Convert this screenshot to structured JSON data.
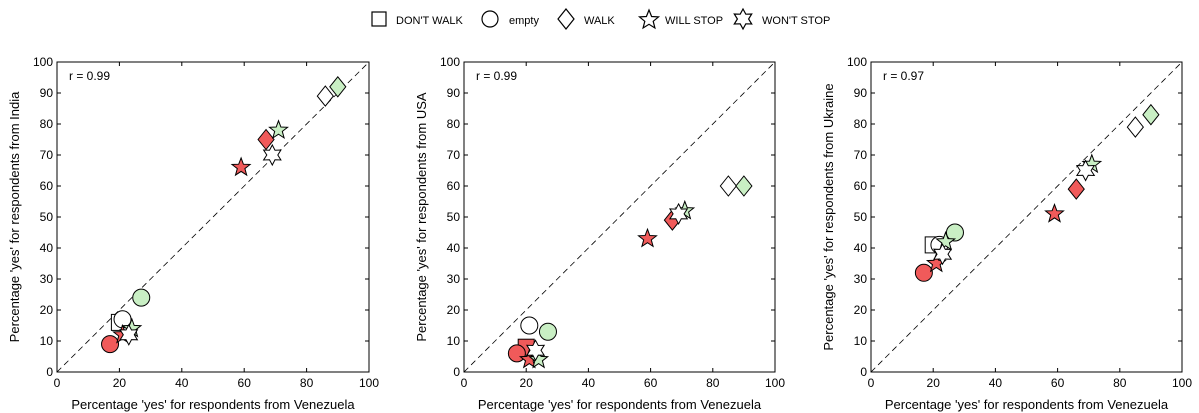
{
  "legend": {
    "items": [
      {
        "key": "dont_walk",
        "label": "DON'T WALK",
        "icon": "square-icon"
      },
      {
        "key": "empty",
        "label": "empty",
        "icon": "circle-icon"
      },
      {
        "key": "walk",
        "label": "WALK",
        "icon": "diamond-icon"
      },
      {
        "key": "will_stop",
        "label": "WILL STOP",
        "icon": "star5-icon"
      },
      {
        "key": "wont_stop",
        "label": "WON'T STOP",
        "icon": "star6-icon"
      }
    ]
  },
  "colors": {
    "white": "#ffffff",
    "green": "#c9efc4",
    "red": "#f05a5a",
    "edge": "#000000",
    "grid": "#000000"
  },
  "chart_data": [
    {
      "type": "scatter",
      "annotation": "r = 0.99",
      "xlabel": "Percentage 'yes' for respondents from Venezuela",
      "ylabel": "Percentage 'yes' for respondents from India",
      "xlim": [
        0,
        100
      ],
      "ylim": [
        0,
        100
      ],
      "xticks": [
        0,
        20,
        40,
        60,
        80,
        100
      ],
      "yticks": [
        0,
        10,
        20,
        30,
        40,
        50,
        60,
        70,
        80,
        90,
        100
      ],
      "diagonal": true,
      "points": [
        {
          "shape": "square",
          "color": "white",
          "x": 20,
          "y": 16
        },
        {
          "shape": "circle",
          "color": "white",
          "x": 21,
          "y": 17
        },
        {
          "shape": "circle",
          "color": "green",
          "x": 27,
          "y": 24
        },
        {
          "shape": "circle",
          "color": "red",
          "x": 17,
          "y": 9
        },
        {
          "shape": "star5",
          "color": "red",
          "x": 21,
          "y": 12
        },
        {
          "shape": "star5",
          "color": "green",
          "x": 24,
          "y": 14
        },
        {
          "shape": "star6",
          "color": "white",
          "x": 23,
          "y": 12
        },
        {
          "shape": "star5",
          "color": "red",
          "x": 59,
          "y": 66
        },
        {
          "shape": "diamond",
          "color": "red",
          "x": 67,
          "y": 75
        },
        {
          "shape": "star5",
          "color": "green",
          "x": 71,
          "y": 78
        },
        {
          "shape": "star6",
          "color": "white",
          "x": 69,
          "y": 70
        },
        {
          "shape": "diamond",
          "color": "white",
          "x": 86,
          "y": 89
        },
        {
          "shape": "diamond",
          "color": "green",
          "x": 90,
          "y": 92
        }
      ]
    },
    {
      "type": "scatter",
      "annotation": "r = 0.99",
      "xlabel": "Percentage 'yes' for respondents from Venezuela",
      "ylabel": "Percentage 'yes' for respondents from USA",
      "xlim": [
        0,
        100
      ],
      "ylim": [
        0,
        100
      ],
      "xticks": [
        0,
        20,
        40,
        60,
        80,
        100
      ],
      "yticks": [
        0,
        10,
        20,
        30,
        40,
        50,
        60,
        70,
        80,
        90,
        100
      ],
      "diagonal": true,
      "points": [
        {
          "shape": "square",
          "color": "red",
          "x": 20,
          "y": 8
        },
        {
          "shape": "circle",
          "color": "red",
          "x": 17,
          "y": 6
        },
        {
          "shape": "circle",
          "color": "white",
          "x": 21,
          "y": 15
        },
        {
          "shape": "circle",
          "color": "green",
          "x": 27,
          "y": 13
        },
        {
          "shape": "star5",
          "color": "red",
          "x": 21,
          "y": 4
        },
        {
          "shape": "star5",
          "color": "green",
          "x": 24,
          "y": 4
        },
        {
          "shape": "star6",
          "color": "white",
          "x": 23,
          "y": 7
        },
        {
          "shape": "star5",
          "color": "red",
          "x": 59,
          "y": 43
        },
        {
          "shape": "diamond",
          "color": "red",
          "x": 67,
          "y": 49
        },
        {
          "shape": "star5",
          "color": "green",
          "x": 71,
          "y": 52
        },
        {
          "shape": "star6",
          "color": "white",
          "x": 69,
          "y": 51
        },
        {
          "shape": "diamond",
          "color": "white",
          "x": 85,
          "y": 60
        },
        {
          "shape": "diamond",
          "color": "green",
          "x": 90,
          "y": 60
        }
      ]
    },
    {
      "type": "scatter",
      "annotation": "r = 0.97",
      "xlabel": "Percentage 'yes' for respondents from Venezuela",
      "ylabel": "Percentage 'yes' for respondents from Ukraine",
      "xlim": [
        0,
        100
      ],
      "ylim": [
        0,
        100
      ],
      "xticks": [
        0,
        20,
        40,
        60,
        80,
        100
      ],
      "yticks": [
        0,
        10,
        20,
        30,
        40,
        50,
        60,
        70,
        80,
        90,
        100
      ],
      "diagonal": true,
      "points": [
        {
          "shape": "square",
          "color": "white",
          "x": 20,
          "y": 41
        },
        {
          "shape": "circle",
          "color": "white",
          "x": 22,
          "y": 41
        },
        {
          "shape": "circle",
          "color": "green",
          "x": 27,
          "y": 45
        },
        {
          "shape": "circle",
          "color": "red",
          "x": 17,
          "y": 32
        },
        {
          "shape": "star5",
          "color": "red",
          "x": 21,
          "y": 35
        },
        {
          "shape": "star5",
          "color": "green",
          "x": 24,
          "y": 42
        },
        {
          "shape": "star6",
          "color": "white",
          "x": 23,
          "y": 38
        },
        {
          "shape": "star5",
          "color": "red",
          "x": 59,
          "y": 51
        },
        {
          "shape": "diamond",
          "color": "red",
          "x": 66,
          "y": 59
        },
        {
          "shape": "star5",
          "color": "green",
          "x": 71,
          "y": 67
        },
        {
          "shape": "star6",
          "color": "white",
          "x": 69,
          "y": 65
        },
        {
          "shape": "diamond",
          "color": "white",
          "x": 85,
          "y": 79
        },
        {
          "shape": "diamond",
          "color": "green",
          "x": 90,
          "y": 83
        }
      ]
    }
  ]
}
